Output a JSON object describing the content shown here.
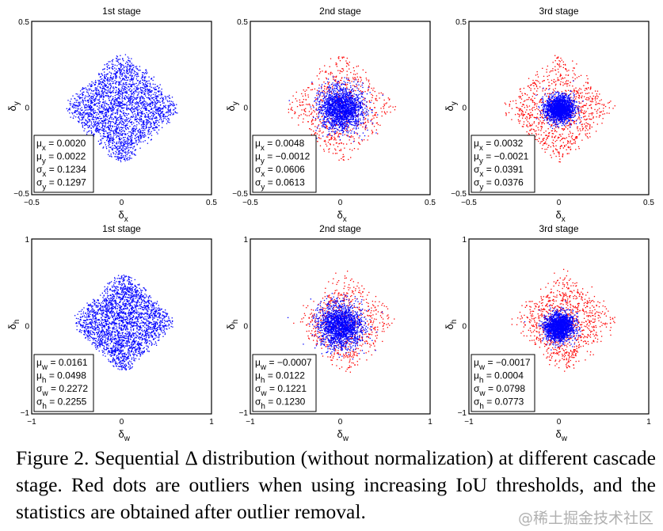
{
  "chart_data": [
    {
      "type": "scatter",
      "title": "1st stage",
      "xlabel": "δ",
      "xlabel_sub": "x",
      "ylabel": "δ",
      "ylabel_sub": "y",
      "xlim": [
        -0.5,
        0.5
      ],
      "ylim": [
        -0.5,
        0.5
      ],
      "xticks": [
        "−0.5",
        "0",
        "0.5"
      ],
      "yticks": [
        "−0.5",
        "0",
        "0.5"
      ],
      "stats": [
        {
          "sym": "μ",
          "sub": "x",
          "value": "0.0020"
        },
        {
          "sym": "μ",
          "sub": "y",
          "value": "0.0022"
        },
        {
          "sym": "σ",
          "sub": "x",
          "value": "0.1234"
        },
        {
          "sym": "σ",
          "sub": "y",
          "value": "0.1297"
        }
      ],
      "outliers": false
    },
    {
      "type": "scatter",
      "title": "2nd stage",
      "xlabel": "δ",
      "xlabel_sub": "x",
      "ylabel": "δ",
      "ylabel_sub": "y",
      "xlim": [
        -0.5,
        0.5
      ],
      "ylim": [
        -0.5,
        0.5
      ],
      "xticks": [
        "−0.5",
        "0",
        "0.5"
      ],
      "yticks": [
        "−0.5",
        "0",
        "0.5"
      ],
      "stats": [
        {
          "sym": "μ",
          "sub": "x",
          "value": "0.0048"
        },
        {
          "sym": "μ",
          "sub": "y",
          "value": "−0.0012"
        },
        {
          "sym": "σ",
          "sub": "x",
          "value": "0.0606"
        },
        {
          "sym": "σ",
          "sub": "y",
          "value": "0.0613"
        }
      ],
      "outliers": true
    },
    {
      "type": "scatter",
      "title": "3rd stage",
      "xlabel": "δ",
      "xlabel_sub": "x",
      "ylabel": "δ",
      "ylabel_sub": "y",
      "xlim": [
        -0.5,
        0.5
      ],
      "ylim": [
        -0.5,
        0.5
      ],
      "xticks": [
        "−0.5",
        "0",
        "0.5"
      ],
      "yticks": [
        "−0.5",
        "0",
        "0.5"
      ],
      "stats": [
        {
          "sym": "μ",
          "sub": "x",
          "value": "0.0032"
        },
        {
          "sym": "μ",
          "sub": "y",
          "value": "−0.0021"
        },
        {
          "sym": "σ",
          "sub": "x",
          "value": "0.0391"
        },
        {
          "sym": "σ",
          "sub": "y",
          "value": "0.0376"
        }
      ],
      "outliers": true
    },
    {
      "type": "scatter",
      "title": "1st stage",
      "xlabel": "δ",
      "xlabel_sub": "w",
      "ylabel": "δ",
      "ylabel_sub": "h",
      "xlim": [
        -1,
        1
      ],
      "ylim": [
        -1,
        1
      ],
      "xticks": [
        "−1",
        "0",
        "1"
      ],
      "yticks": [
        "−1",
        "0",
        "1"
      ],
      "stats": [
        {
          "sym": "μ",
          "sub": "w",
          "value": "0.0161"
        },
        {
          "sym": "μ",
          "sub": "h",
          "value": "0.0498"
        },
        {
          "sym": "σ",
          "sub": "w",
          "value": "0.2272"
        },
        {
          "sym": "σ",
          "sub": "h",
          "value": "0.2255"
        }
      ],
      "outliers": false
    },
    {
      "type": "scatter",
      "title": "2nd stage",
      "xlabel": "δ",
      "xlabel_sub": "w",
      "ylabel": "δ",
      "ylabel_sub": "h",
      "xlim": [
        -1,
        1
      ],
      "ylim": [
        -1,
        1
      ],
      "xticks": [
        "−1",
        "0",
        "1"
      ],
      "yticks": [
        "−1",
        "0",
        "1"
      ],
      "stats": [
        {
          "sym": "μ",
          "sub": "w",
          "value": "−0.0007"
        },
        {
          "sym": "μ",
          "sub": "h",
          "value": "0.0122"
        },
        {
          "sym": "σ",
          "sub": "w",
          "value": "0.1221"
        },
        {
          "sym": "σ",
          "sub": "h",
          "value": "0.1230"
        }
      ],
      "outliers": true
    },
    {
      "type": "scatter",
      "title": "3rd stage",
      "xlabel": "δ",
      "xlabel_sub": "w",
      "ylabel": "δ",
      "ylabel_sub": "h",
      "xlim": [
        -1,
        1
      ],
      "ylim": [
        -1,
        1
      ],
      "xticks": [
        "−1",
        "0",
        "1"
      ],
      "yticks": [
        "−1",
        "0",
        "1"
      ],
      "stats": [
        {
          "sym": "μ",
          "sub": "w",
          "value": "−0.0017"
        },
        {
          "sym": "μ",
          "sub": "h",
          "value": "0.0004"
        },
        {
          "sym": "σ",
          "sub": "w",
          "value": "0.0798"
        },
        {
          "sym": "σ",
          "sub": "h",
          "value": "0.0773"
        }
      ],
      "outliers": true
    }
  ],
  "colors": {
    "inlier": "#0000ff",
    "outlier": "#ff0000"
  },
  "caption": "Figure 2. Sequential Δ distribution (without normalization) at different cascade stage. Red dots are outliers when using increasing IoU thresholds, and the statistics are obtained after outlier removal.",
  "watermark": "@稀土掘金技术社区"
}
